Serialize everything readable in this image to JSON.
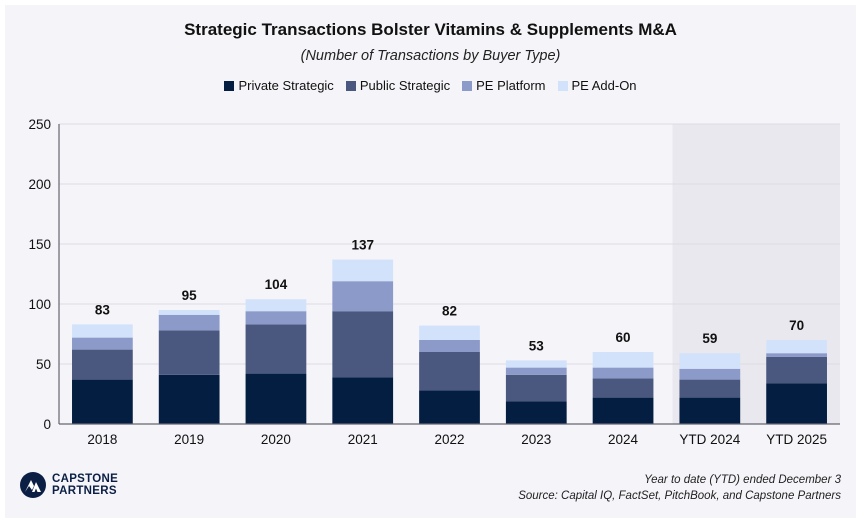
{
  "chart_data": {
    "type": "bar",
    "stacked": true,
    "title": "Strategic Transactions Bolster Vitamins & Supplements M&A",
    "subtitle": "(Number of Transactions by Buyer Type)",
    "xlabel": "",
    "ylabel": "",
    "ylim": [
      0,
      250
    ],
    "yticks": [
      0,
      50,
      100,
      150,
      200,
      250
    ],
    "grid": true,
    "legend_position": "top-center",
    "categories": [
      "2018",
      "2019",
      "2020",
      "2021",
      "2022",
      "2023",
      "2024",
      "YTD 2024",
      "YTD 2025"
    ],
    "highlighted_categories": [
      "YTD 2024",
      "YTD 2025"
    ],
    "series": [
      {
        "name": "Private Strategic",
        "color": "#041e42",
        "values": [
          37,
          41,
          42,
          39,
          28,
          19,
          22,
          22,
          34
        ]
      },
      {
        "name": "Public Strategic",
        "color": "#4a5880",
        "values": [
          25,
          37,
          41,
          55,
          32,
          22,
          16,
          15,
          22
        ]
      },
      {
        "name": "PE Platform",
        "color": "#8b9ac8",
        "values": [
          10,
          13,
          11,
          25,
          10,
          6,
          9,
          9,
          3
        ]
      },
      {
        "name": "PE Add-On",
        "color": "#d3e2fb",
        "values": [
          11,
          4,
          10,
          18,
          12,
          6,
          13,
          13,
          11
        ]
      }
    ],
    "totals": [
      83,
      95,
      104,
      137,
      82,
      53,
      60,
      59,
      70
    ]
  },
  "colors": {
    "background": "#f4f4f9",
    "highlight_band": "#e8e8ee",
    "grid": "#dcdce2",
    "axis": "#666670"
  },
  "branding": {
    "line1": "CAPSTONE",
    "line2": "PARTNERS"
  },
  "footnotes": {
    "ytd_note": "Year to date (YTD) ended December 3",
    "source": "Source: Capital IQ, FactSet, PitchBook, and Capstone Partners"
  }
}
